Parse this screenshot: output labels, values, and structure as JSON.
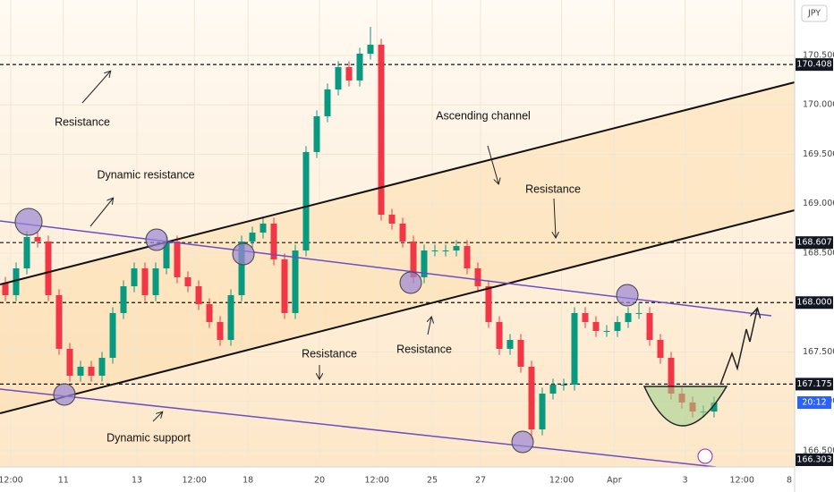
{
  "chart_data": {
    "type": "candlestick",
    "currency": "JPY",
    "countdown": "20:12",
    "up_color": "#089981",
    "down_color": "#f23645",
    "x": [
      0,
      1,
      2,
      3,
      4,
      5,
      6,
      7,
      8,
      9,
      10,
      11,
      12,
      13,
      14,
      15,
      16,
      17,
      18,
      19,
      20,
      21,
      22,
      23,
      24,
      25,
      26,
      27,
      28,
      29,
      30,
      31,
      32,
      33,
      34,
      35,
      36,
      37,
      38,
      39,
      40,
      41,
      42,
      43,
      44,
      45,
      46,
      47,
      48,
      49,
      50,
      51,
      52,
      53,
      54,
      55,
      56,
      57,
      58,
      59,
      60,
      61,
      62,
      63,
      64,
      65,
      66
    ],
    "open": [
      168.2,
      168.075,
      168.346,
      168.663,
      168.618,
      168.075,
      167.532,
      167.26,
      167.351,
      167.26,
      167.441,
      167.894,
      168.165,
      168.346,
      168.075,
      168.346,
      168.618,
      168.256,
      168.165,
      167.984,
      167.803,
      167.622,
      168.075,
      168.618,
      168.708,
      168.799,
      168.437,
      167.894,
      168.527,
      169.523,
      169.885,
      170.156,
      170.382,
      170.247,
      170.518,
      170.609,
      168.889,
      168.799,
      168.618,
      168.256,
      168.527,
      168.527,
      168.527,
      168.572,
      168.346,
      168.165,
      167.803,
      167.532,
      167.622,
      167.351,
      166.717,
      167.079,
      167.17,
      167.17,
      167.894,
      167.803,
      167.713,
      167.713,
      167.803,
      167.894,
      167.894,
      167.622,
      167.441,
      167.079,
      166.989,
      166.898,
      166.898
    ],
    "high": [
      168.26,
      168.406,
      168.723,
      168.723,
      168.678,
      168.135,
      167.592,
      167.411,
      167.411,
      167.501,
      167.954,
      168.225,
      168.406,
      168.406,
      168.406,
      168.678,
      168.678,
      168.316,
      168.225,
      168.044,
      167.863,
      168.135,
      168.678,
      168.768,
      168.859,
      168.859,
      168.497,
      168.587,
      169.583,
      169.945,
      170.216,
      170.442,
      170.442,
      170.578,
      170.79,
      170.669,
      168.949,
      168.859,
      168.678,
      168.587,
      168.587,
      168.587,
      168.632,
      168.632,
      168.406,
      168.225,
      167.863,
      167.682,
      167.682,
      167.411,
      167.139,
      167.23,
      167.23,
      167.954,
      167.954,
      167.863,
      167.773,
      167.863,
      167.954,
      168.0,
      167.954,
      167.682,
      167.501,
      167.139,
      167.049,
      166.958,
      167.049
    ],
    "low": [
      168.015,
      168.015,
      168.286,
      168.558,
      168.015,
      167.472,
      167.2,
      167.2,
      167.2,
      167.2,
      167.381,
      167.834,
      168.105,
      168.015,
      168.015,
      168.286,
      168.196,
      168.105,
      167.924,
      167.743,
      167.562,
      167.562,
      168.015,
      168.558,
      168.648,
      168.377,
      167.834,
      167.834,
      168.467,
      169.463,
      169.825,
      170.096,
      170.187,
      170.187,
      170.458,
      168.829,
      168.739,
      168.558,
      168.196,
      168.196,
      168.467,
      168.467,
      168.467,
      168.286,
      168.105,
      167.743,
      167.472,
      167.472,
      167.291,
      166.62,
      166.657,
      167.019,
      167.11,
      167.11,
      167.743,
      167.653,
      167.653,
      167.653,
      167.743,
      167.834,
      167.562,
      167.381,
      167.019,
      166.929,
      166.838,
      166.838,
      166.838
    ],
    "close": [
      168.075,
      168.346,
      168.663,
      168.618,
      168.075,
      167.532,
      167.26,
      167.351,
      167.26,
      167.441,
      167.894,
      168.165,
      168.346,
      168.075,
      168.346,
      168.618,
      168.256,
      168.165,
      167.984,
      167.803,
      167.622,
      168.075,
      168.618,
      168.708,
      168.799,
      168.437,
      167.894,
      168.527,
      169.523,
      169.885,
      170.156,
      170.382,
      170.247,
      170.518,
      170.609,
      168.889,
      168.799,
      168.618,
      168.256,
      168.527,
      168.527,
      168.527,
      168.572,
      168.346,
      168.165,
      167.803,
      167.532,
      167.622,
      167.351,
      166.717,
      167.079,
      167.17,
      167.17,
      167.894,
      167.803,
      167.713,
      167.713,
      167.803,
      167.894,
      167.894,
      167.622,
      167.441,
      167.079,
      166.989,
      166.898,
      166.898,
      166.989
    ],
    "xlim": [
      -0.5,
      73.5
    ],
    "ylim": [
      166.337,
      171.061
    ],
    "yticks": [
      {
        "value": 170.5,
        "label": "170.500"
      },
      {
        "value": 170,
        "label": "170.000"
      },
      {
        "value": 169.5,
        "label": "169.500"
      },
      {
        "value": 169,
        "label": "169.000"
      },
      {
        "value": 168.5,
        "label": "168.500"
      },
      {
        "value": 167.5,
        "label": "167.500"
      },
      {
        "value": 167,
        "label": "167.000"
      },
      {
        "value": 166.5,
        "label": "166.500"
      }
    ],
    "xticks": [
      {
        "value": 0.5,
        "label": "12:00"
      },
      {
        "value": 5.4,
        "label": "11"
      },
      {
        "value": 12.25,
        "label": "13"
      },
      {
        "value": 17.6,
        "label": "12:00"
      },
      {
        "value": 22.6,
        "label": "18"
      },
      {
        "value": 29.25,
        "label": "20"
      },
      {
        "value": 34.6,
        "label": "12:00"
      },
      {
        "value": 39.75,
        "label": "25"
      },
      {
        "value": 44.25,
        "label": "27"
      },
      {
        "value": 51.8,
        "label": "12:00"
      },
      {
        "value": 56.7,
        "label": "Apr"
      },
      {
        "value": 63.3,
        "label": "3"
      },
      {
        "value": 68.6,
        "label": "12:00"
      },
      {
        "value": 73.5,
        "label": "8"
      }
    ],
    "levels": [
      {
        "value": 170.408,
        "label": "170.408",
        "dashed": true
      },
      {
        "value": 168.607,
        "label": "168.607",
        "dashed": true
      },
      {
        "value": 168,
        "label": "168.000",
        "dashed": true
      },
      {
        "value": 167.175,
        "label": "167.175",
        "dashed": true
      },
      {
        "value": 166.303,
        "label": "166.303",
        "dashed": false
      }
    ],
    "annotations": [
      "Resistance",
      "Dynamic resistance",
      "Ascending channel",
      "Resistance",
      "Resistance",
      "Resistance",
      "Dynamic support"
    ]
  }
}
